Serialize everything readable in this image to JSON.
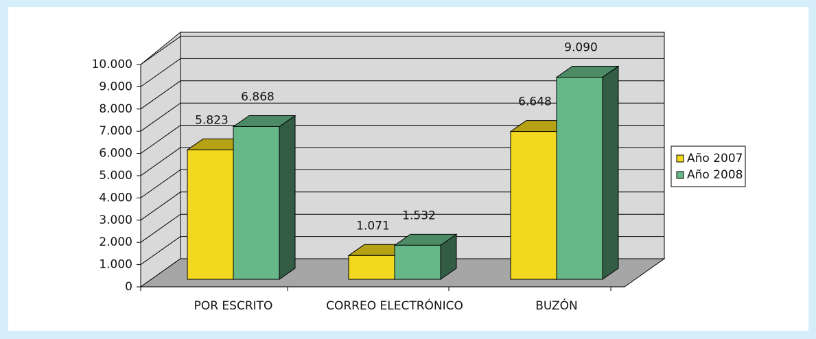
{
  "chart_data": {
    "type": "bar3d",
    "categories": [
      "POR ESCRITO",
      "CORREO ELECTRÓNICO",
      "BUZÓN"
    ],
    "series": [
      {
        "name": "Año 2007",
        "color": "#f2d81e",
        "values": [
          5823,
          1071,
          6648
        ],
        "value_labels": [
          "5.823",
          "1.071",
          "6.648"
        ]
      },
      {
        "name": "Año 2008",
        "color": "#66b888",
        "values": [
          6868,
          1532,
          9090
        ],
        "value_labels": [
          "6.868",
          "1.532",
          "9.090"
        ]
      }
    ],
    "ylim": [
      0,
      10000
    ],
    "yticks": [
      0,
      {
        "value": 1000,
        "label": "1.000"
      },
      {
        "value": 2000,
        "label": "2.000"
      },
      {
        "value": 3000,
        "label": "3.000"
      },
      {
        "value": 4000,
        "label": "4.000"
      },
      {
        "value": 5000,
        "label": "5.000"
      },
      {
        "value": 6000,
        "label": "6.000"
      },
      {
        "value": 7000,
        "label": "7.000"
      },
      {
        "value": 8000,
        "label": "8.000"
      },
      {
        "value": 9000,
        "label": "9.000"
      },
      {
        "value": 10000,
        "label": "10.000"
      }
    ],
    "grid": true,
    "legend": "right"
  }
}
